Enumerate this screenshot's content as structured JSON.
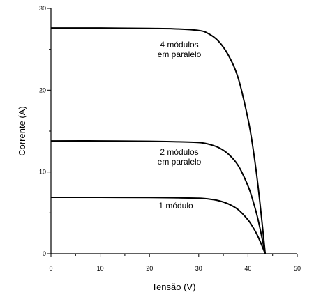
{
  "chart_data": {
    "type": "line",
    "xlabel": "Tensão (V)",
    "ylabel": "Corrente (A)",
    "xlim": [
      0,
      50
    ],
    "ylim": [
      0,
      30
    ],
    "x_ticks": [
      0,
      10,
      20,
      30,
      40,
      50
    ],
    "y_ticks": [
      0,
      10,
      20,
      30
    ],
    "grid": false,
    "series": [
      {
        "label_lines": [
          "4  módulos",
          "em paralelo"
        ],
        "x": [
          0,
          10,
          20,
          25,
          30,
          32,
          34,
          36,
          38,
          40,
          41,
          42,
          43,
          43.5
        ],
        "y": [
          27.6,
          27.6,
          27.55,
          27.5,
          27.3,
          26.9,
          26.0,
          24.3,
          21.5,
          16.5,
          13.0,
          8.5,
          3.0,
          0
        ]
      },
      {
        "label_lines": [
          "2 módulos",
          "em paralelo"
        ],
        "x": [
          0,
          10,
          20,
          25,
          30,
          32,
          34,
          36,
          38,
          40,
          41,
          42,
          43,
          43.5
        ],
        "y": [
          13.8,
          13.8,
          13.75,
          13.7,
          13.6,
          13.4,
          13.0,
          12.2,
          10.8,
          8.3,
          6.5,
          4.3,
          1.5,
          0
        ]
      },
      {
        "label_lines": [
          "1 módulo"
        ],
        "x": [
          0,
          10,
          20,
          25,
          30,
          32,
          34,
          36,
          38,
          40,
          41,
          42,
          43,
          43.5
        ],
        "y": [
          6.9,
          6.9,
          6.88,
          6.85,
          6.8,
          6.7,
          6.5,
          6.1,
          5.4,
          4.15,
          3.25,
          2.15,
          0.75,
          0
        ]
      }
    ]
  }
}
